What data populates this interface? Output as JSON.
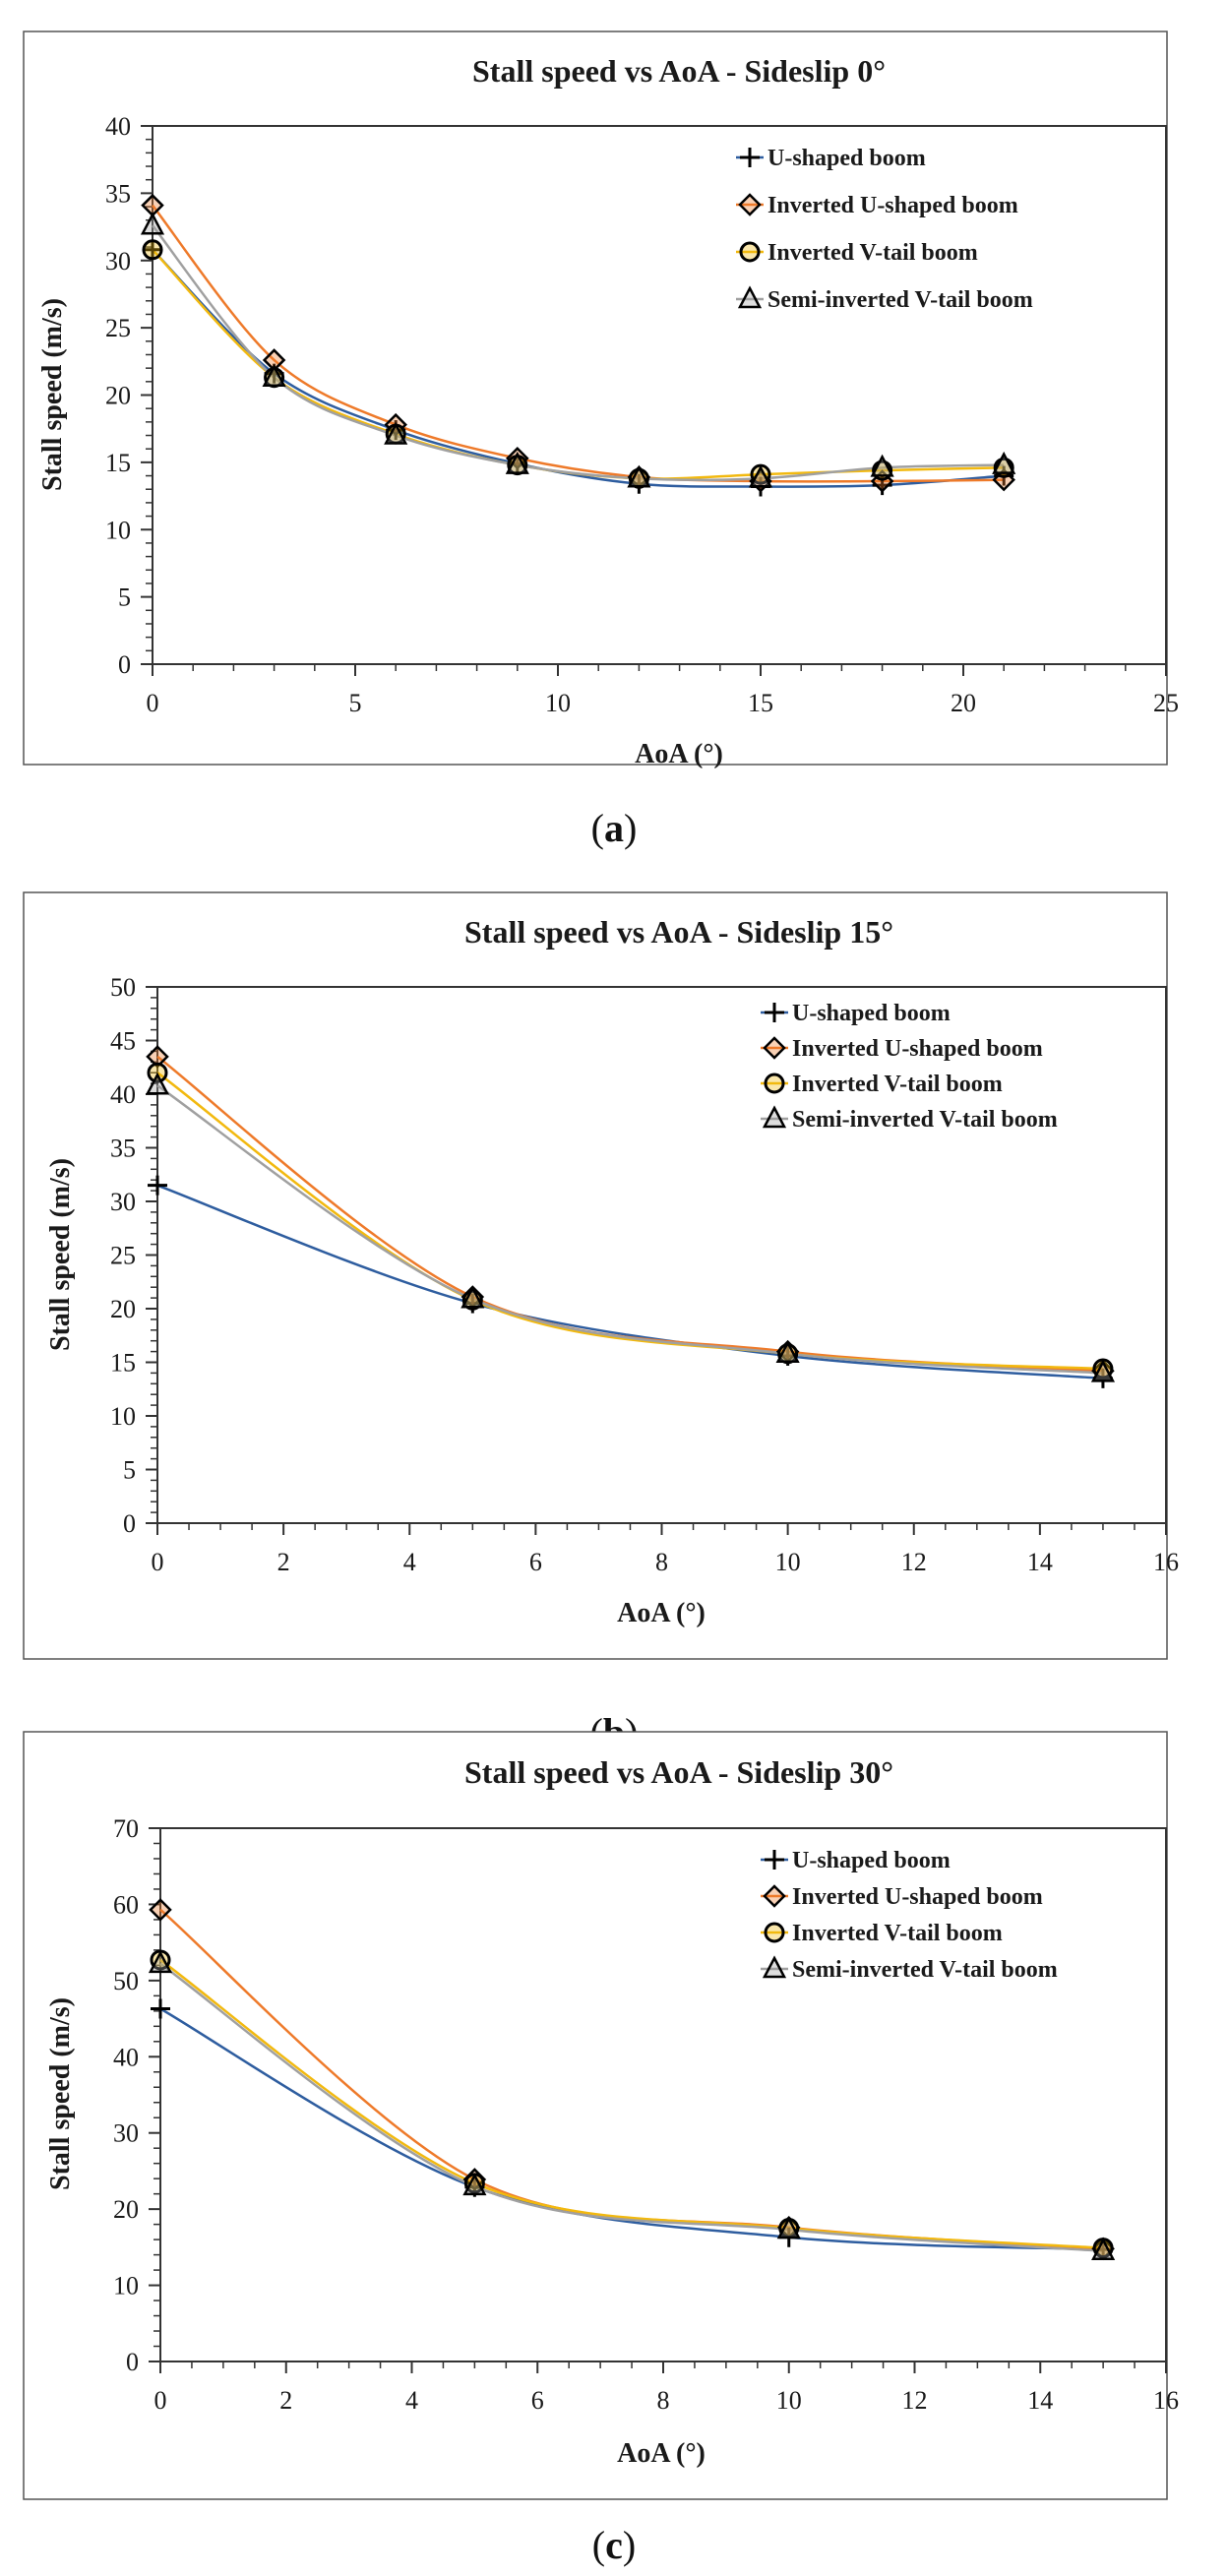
{
  "chart_data": [
    {
      "type": "line",
      "title": "Stall speed vs AoA - Sideslip 0°",
      "xlabel": "AoA (°)",
      "ylabel": "Stall speed (m/s)",
      "xlim": [
        0,
        25
      ],
      "ylim": [
        0,
        40
      ],
      "xticks": [
        0,
        5,
        10,
        15,
        20,
        25
      ],
      "yticks": [
        0,
        5,
        10,
        15,
        20,
        25,
        30,
        35,
        40
      ],
      "x": [
        0,
        3,
        6,
        9,
        12,
        15,
        18,
        21
      ],
      "series": [
        {
          "name": "U-shaped boom",
          "color": "#2e5d9f",
          "marker": "plus",
          "values": [
            30.8,
            21.6,
            17.4,
            14.9,
            13.4,
            13.2,
            13.3,
            14.0
          ]
        },
        {
          "name": "Inverted U-shaped boom",
          "color": "#ee7a2a",
          "marker": "diamond",
          "values": [
            34.1,
            22.6,
            17.8,
            15.3,
            13.9,
            13.6,
            13.6,
            13.7
          ]
        },
        {
          "name": "Inverted V-tail boom",
          "color": "#f2b90f",
          "marker": "circle",
          "values": [
            30.8,
            21.3,
            17.1,
            14.8,
            13.8,
            14.1,
            14.4,
            14.6
          ]
        },
        {
          "name": "Semi-inverted V-tail boom",
          "color": "#a0a0a0",
          "marker": "triangle",
          "values": [
            32.6,
            21.3,
            17.0,
            14.8,
            13.8,
            13.8,
            14.6,
            14.8
          ]
        }
      ],
      "legend": "top-right",
      "caption": "a"
    },
    {
      "type": "line",
      "title": "Stall speed vs AoA - Sideslip 15°",
      "xlabel": "AoA (°)",
      "ylabel": "Stall speed (m/s)",
      "xlim": [
        0,
        16
      ],
      "ylim": [
        0,
        50
      ],
      "xticks": [
        0,
        2,
        4,
        6,
        8,
        10,
        12,
        14,
        16
      ],
      "yticks": [
        0,
        5,
        10,
        15,
        20,
        25,
        30,
        35,
        40,
        45,
        50
      ],
      "x": [
        0,
        5,
        10,
        15
      ],
      "series": [
        {
          "name": "U-shaped boom",
          "color": "#2e5d9f",
          "marker": "plus",
          "values": [
            31.5,
            20.5,
            15.6,
            13.5
          ]
        },
        {
          "name": "Inverted U-shaped boom",
          "color": "#ee7a2a",
          "marker": "diamond",
          "values": [
            43.5,
            21.1,
            16.0,
            14.2
          ]
        },
        {
          "name": "Inverted V-tail boom",
          "color": "#f2b90f",
          "marker": "circle",
          "values": [
            42.0,
            20.8,
            15.8,
            14.4
          ]
        },
        {
          "name": "Semi-inverted V-tail boom",
          "color": "#a0a0a0",
          "marker": "triangle",
          "values": [
            40.8,
            20.9,
            15.8,
            14.0
          ]
        }
      ],
      "legend": "top-right",
      "caption": "b"
    },
    {
      "type": "line",
      "title": "Stall speed vs AoA - Sideslip 30°",
      "xlabel": "AoA (°)",
      "ylabel": "Stall speed (m/s)",
      "xlim": [
        0,
        16
      ],
      "ylim": [
        0,
        70
      ],
      "xticks": [
        0,
        2,
        4,
        6,
        8,
        10,
        12,
        14,
        16
      ],
      "yticks": [
        0,
        10,
        20,
        30,
        40,
        50,
        60,
        70
      ],
      "x": [
        0,
        5,
        10,
        15
      ],
      "series": [
        {
          "name": "U-shaped boom",
          "color": "#2e5d9f",
          "marker": "plus",
          "values": [
            46.3,
            22.9,
            16.3,
            14.7
          ]
        },
        {
          "name": "Inverted U-shaped boom",
          "color": "#ee7a2a",
          "marker": "diamond",
          "values": [
            59.3,
            23.9,
            17.6,
            14.8
          ]
        },
        {
          "name": "Inverted V-tail boom",
          "color": "#f2b90f",
          "marker": "circle",
          "values": [
            52.7,
            23.4,
            17.5,
            14.9
          ]
        },
        {
          "name": "Semi-inverted V-tail boom",
          "color": "#a0a0a0",
          "marker": "triangle",
          "values": [
            52.2,
            23.0,
            17.3,
            14.5
          ]
        }
      ],
      "legend": "top-right",
      "caption": "c"
    }
  ]
}
